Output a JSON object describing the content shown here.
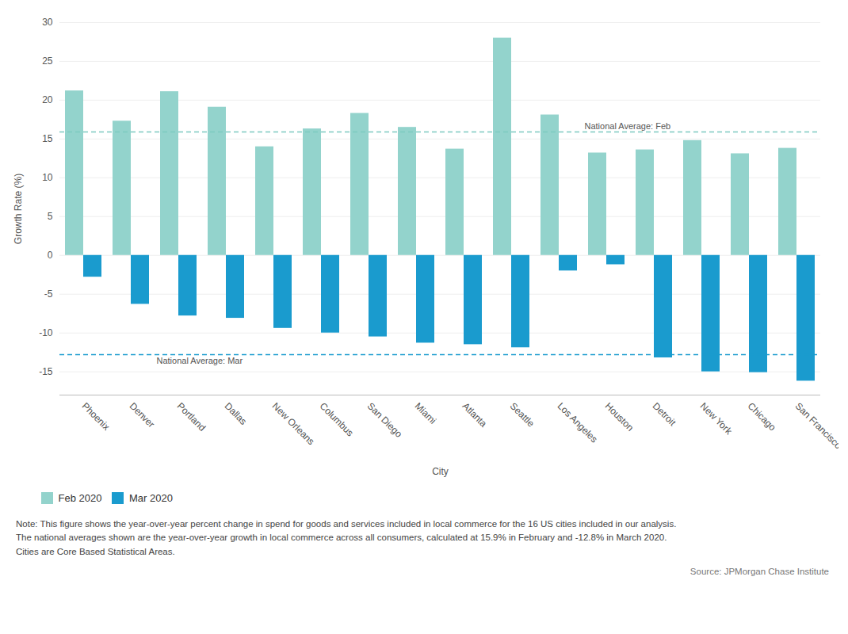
{
  "chart_data": {
    "type": "bar",
    "categories": [
      "Phoenix",
      "Denver",
      "Portland",
      "Dallas",
      "New Orleans",
      "Columbus",
      "San Diego",
      "Miami",
      "Atlanta",
      "Seattle",
      "Los Angeles",
      "Houston",
      "Detroit",
      "New York",
      "Chicago",
      "San Francisco"
    ],
    "series": [
      {
        "name": "Feb 2020",
        "color": "#93d3cc",
        "values": [
          21.2,
          17.3,
          21.1,
          19.1,
          14.0,
          16.3,
          18.3,
          16.5,
          13.7,
          28.0,
          18.1,
          13.2,
          13.6,
          14.8,
          13.1,
          13.8
        ]
      },
      {
        "name": "Mar 2020",
        "color": "#1a9bce",
        "values": [
          -2.8,
          -6.3,
          -7.8,
          -8.1,
          -9.4,
          -10.0,
          -10.5,
          -11.3,
          -11.5,
          -11.9,
          -2.0,
          -1.2,
          -13.2,
          -15.0,
          -15.1,
          -16.2
        ]
      }
    ],
    "reference_lines": [
      {
        "value": 15.9,
        "label": "National Average: Feb",
        "color": "#7dc9c0",
        "line_style": "dashed"
      },
      {
        "value": -12.8,
        "label": "National Average: Mar",
        "color": "#1a9bce",
        "line_style": "dashed"
      }
    ],
    "xlabel": "City",
    "ylabel": "Growth Rate (%)",
    "ylim": [
      -18,
      30
    ],
    "yticks": [
      -15,
      -10,
      -5,
      0,
      5,
      10,
      15,
      20,
      25,
      30
    ],
    "grid": true,
    "legend": "bottom",
    "note": "Note: This figure shows the year-over-year percent change in spend for goods and services included in local commerce for the 16 US cities included in our analysis.\nThe national averages shown are the year-over-year growth in local commerce across all consumers, calculated at 15.9% in February and -12.8% in March 2020.\nCities are Core Based Statistical Areas.",
    "source": "Source: JPMorgan Chase Institute"
  }
}
